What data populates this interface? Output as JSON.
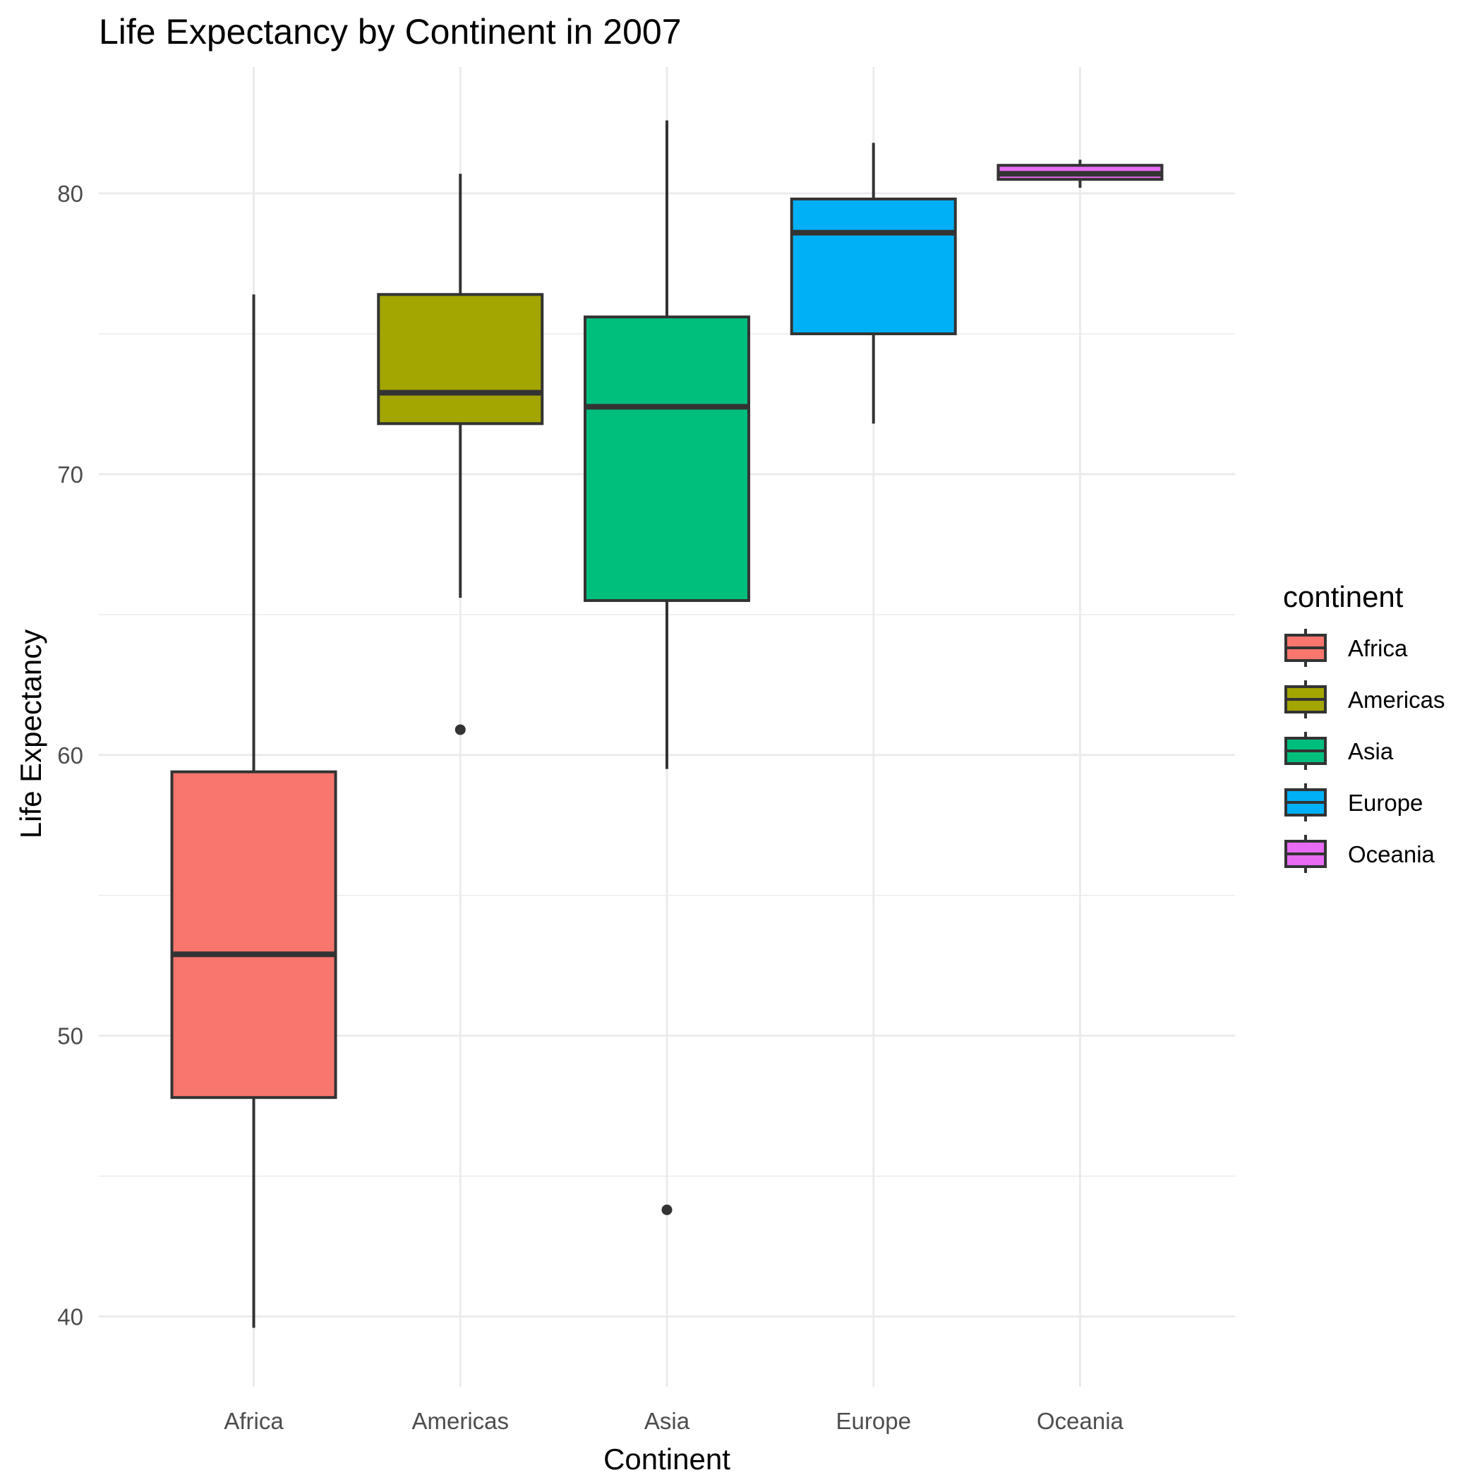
{
  "chart_data": {
    "type": "boxplot",
    "title": "Life Expectancy by Continent in 2007",
    "xlabel": "Continent",
    "ylabel": "Life Expectancy",
    "ylim": [
      37.5,
      84.5
    ],
    "yticks": [
      40,
      50,
      60,
      70,
      80
    ],
    "grid": true,
    "legend": {
      "title": "continent",
      "position": "right"
    },
    "categories": [
      "Africa",
      "Americas",
      "Asia",
      "Europe",
      "Oceania"
    ],
    "series": [
      {
        "name": "Africa",
        "color": "#F8766D",
        "min": 39.6,
        "q1": 47.8,
        "median": 52.9,
        "q3": 59.4,
        "max": 76.4,
        "outliers": []
      },
      {
        "name": "Americas",
        "color": "#A3A500",
        "min": 65.6,
        "q1": 71.8,
        "median": 72.9,
        "q3": 76.4,
        "max": 80.7,
        "outliers": [
          60.9
        ]
      },
      {
        "name": "Asia",
        "color": "#00BF7D",
        "min": 59.5,
        "q1": 65.5,
        "median": 72.4,
        "q3": 75.6,
        "max": 82.6,
        "outliers": [
          43.8
        ]
      },
      {
        "name": "Europe",
        "color": "#00B0F6",
        "min": 71.8,
        "q1": 75.0,
        "median": 78.6,
        "q3": 79.8,
        "max": 81.8,
        "outliers": []
      },
      {
        "name": "Oceania",
        "color": "#E76BF3",
        "min": 80.2,
        "q1": 80.5,
        "median": 80.7,
        "q3": 81.0,
        "max": 81.2,
        "outliers": []
      }
    ]
  }
}
